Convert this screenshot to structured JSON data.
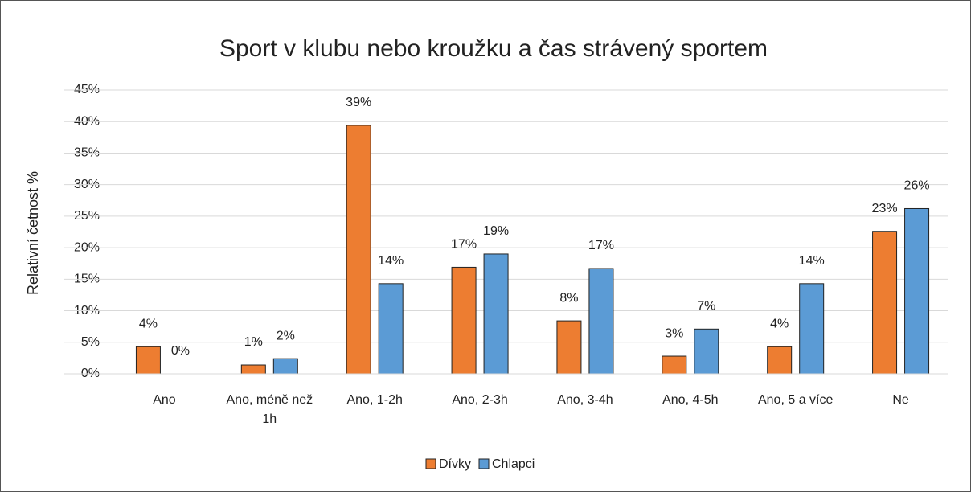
{
  "chart_data": {
    "type": "bar",
    "title": "Sport v klubu nebo kroužku a čas strávený sportem",
    "y_label": "Relativní četnost %",
    "categories": [
      "Ano",
      "Ano, méně než 1h",
      "Ano, 1-2h",
      "Ano, 2-3h",
      "Ano, 3-4h",
      "Ano, 4-5h",
      "Ano, 5 a více",
      "Ne"
    ],
    "series": [
      {
        "name": "Dívky",
        "color": "#ED7D31",
        "values": [
          4.3,
          1.4,
          39.4,
          16.9,
          8.4,
          2.8,
          4.3,
          22.6
        ],
        "value_labels": [
          "4%",
          "1%",
          "39%",
          "17%",
          "8%",
          "3%",
          "4%",
          "23%"
        ]
      },
      {
        "name": "Chlapci",
        "color": "#5B9BD5",
        "values": [
          0,
          2.4,
          14.3,
          19.0,
          16.7,
          7.1,
          14.3,
          26.2
        ],
        "value_labels": [
          "0%",
          "2%",
          "14%",
          "19%",
          "17%",
          "7%",
          "14%",
          "26%"
        ]
      }
    ],
    "ylim": [
      0,
      45
    ],
    "yticks": [
      {
        "value": 0,
        "label": "0%"
      },
      {
        "value": 5,
        "label": "5%"
      },
      {
        "value": 10,
        "label": "10%"
      },
      {
        "value": 15,
        "label": "15%"
      },
      {
        "value": 20,
        "label": "20%"
      },
      {
        "value": 25,
        "label": "25%"
      },
      {
        "value": 30,
        "label": "30%"
      },
      {
        "value": 35,
        "label": "35%"
      },
      {
        "value": 40,
        "label": "40%"
      },
      {
        "value": 45,
        "label": "45%"
      }
    ],
    "grid": true,
    "legend": "bottom"
  }
}
